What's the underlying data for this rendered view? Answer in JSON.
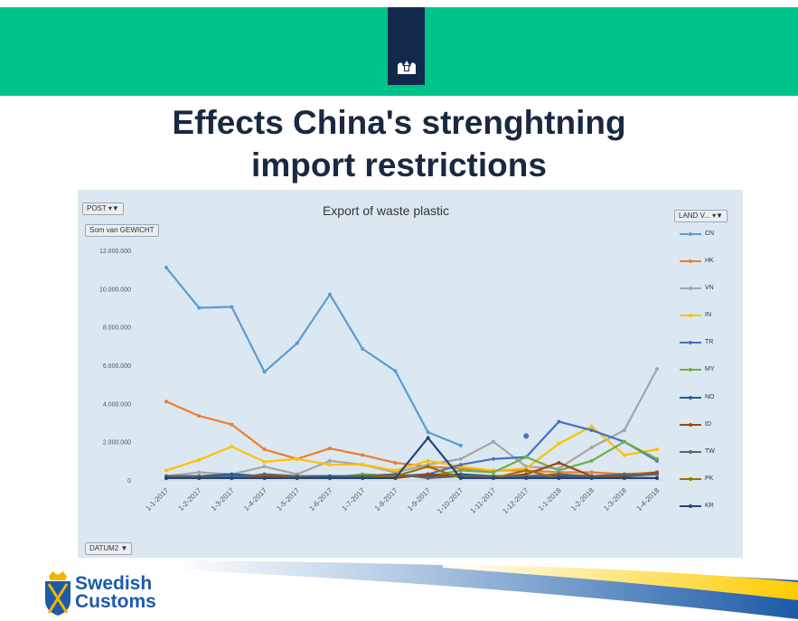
{
  "slide": {
    "title_line1": "Effects China's strenghtning",
    "title_line2": "import restrictions",
    "logo_line1": "Swedish",
    "logo_line2": "Customs",
    "brand_green": "#00c389",
    "brand_navy": "#13294b"
  },
  "pivot_controls": {
    "post_filter": "POST",
    "value_field": "Som van GEWICHT",
    "land_filter": "LAND V...",
    "date_field": "DATUM2"
  },
  "chart_data": {
    "type": "line",
    "title": "Export of waste plastic",
    "xlabel": "",
    "ylabel": "",
    "ylim": [
      0,
      12000000
    ],
    "grid": false,
    "legend_position": "right",
    "y_ticks": [
      "0",
      "2.000.000",
      "4.000.000",
      "6.000.000",
      "8.000.000",
      "10.000.000",
      "12.000.000"
    ],
    "y_tick_values": [
      0,
      2000000,
      4000000,
      6000000,
      8000000,
      10000000,
      12000000
    ],
    "categories": [
      "1-1-2017",
      "1-2-2017",
      "1-3-2017",
      "1-4-2017",
      "1-5-2017",
      "1-6-2017",
      "1-7-2017",
      "1-8-2017",
      "1-9-2017",
      "1-10-2017",
      "1-11-2017",
      "1-12-2017",
      "1-1-2018",
      "1-2-2018",
      "1-3-2018",
      "1-4-2018"
    ],
    "series": [
      {
        "name": "CN",
        "color": "#5b9bd5",
        "values": [
          11100000,
          9000000,
          9050000,
          5650000,
          7150000,
          9700000,
          6850000,
          5700000,
          2500000,
          1800000,
          null,
          null,
          null,
          null,
          null,
          null
        ]
      },
      {
        "name": "HK",
        "color": "#ed7d31",
        "values": [
          4100000,
          3350000,
          2900000,
          1600000,
          1100000,
          1650000,
          1300000,
          900000,
          700000,
          600000,
          500000,
          500000,
          400000,
          400000,
          300000,
          400000
        ]
      },
      {
        "name": "VN",
        "color": "#a5a5a5",
        "values": [
          200000,
          400000,
          300000,
          700000,
          300000,
          1000000,
          800000,
          400000,
          800000,
          1100000,
          2000000,
          700000,
          600000,
          1700000,
          2600000,
          5800000
        ]
      },
      {
        "name": "IN",
        "color": "#ffc000",
        "values": [
          500000,
          1050000,
          1750000,
          950000,
          1100000,
          800000,
          800000,
          500000,
          1000000,
          700000,
          500000,
          600000,
          1900000,
          2800000,
          1300000,
          1600000
        ]
      },
      {
        "name": "TR",
        "color": "#4472c4",
        "values": [
          100000,
          100000,
          200000,
          100000,
          100000,
          200000,
          100000,
          200000,
          300000,
          800000,
          1100000,
          1200000,
          3050000,
          2600000,
          2000000,
          1000000
        ]
      },
      {
        "name": "MY",
        "color": "#70ad47",
        "values": [
          100000,
          100000,
          100000,
          100000,
          200000,
          100000,
          300000,
          200000,
          200000,
          500000,
          400000,
          1200000,
          500000,
          1000000,
          2000000,
          1100000
        ]
      },
      {
        "name": "NO",
        "color": "#255e91",
        "values": [
          200000,
          200000,
          300000,
          200000,
          200000,
          200000,
          200000,
          200000,
          200000,
          300000,
          200000,
          200000,
          200000,
          200000,
          200000,
          300000
        ]
      },
      {
        "name": "ID",
        "color": "#9e480e",
        "values": [
          100000,
          100000,
          100000,
          200000,
          100000,
          100000,
          100000,
          100000,
          300000,
          200000,
          100000,
          300000,
          900000,
          200000,
          200000,
          400000
        ]
      },
      {
        "name": "TW",
        "color": "#636363",
        "values": [
          200000,
          200000,
          100000,
          300000,
          200000,
          100000,
          200000,
          300000,
          100000,
          200000,
          200000,
          200000,
          300000,
          200000,
          300000,
          300000
        ]
      },
      {
        "name": "PK",
        "color": "#997300",
        "values": [
          100000,
          100000,
          100000,
          100000,
          100000,
          100000,
          100000,
          200000,
          700000,
          100000,
          100000,
          500000,
          100000,
          100000,
          100000,
          100000
        ]
      },
      {
        "name": "KR",
        "color": "#264478",
        "values": [
          100000,
          100000,
          100000,
          100000,
          100000,
          100000,
          100000,
          100000,
          2200000,
          100000,
          100000,
          100000,
          100000,
          100000,
          100000,
          100000
        ]
      }
    ],
    "extra_point": {
      "category": "1-12-2017",
      "value": 2300000,
      "color": "#4472c4"
    }
  }
}
